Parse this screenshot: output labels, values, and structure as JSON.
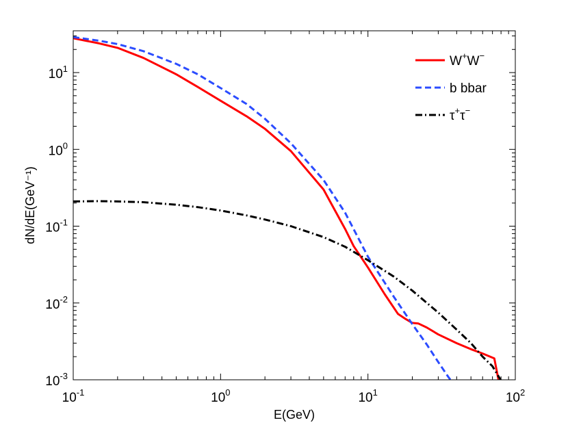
{
  "chart_data": {
    "type": "line",
    "title": "",
    "xlabel": "E(GeV)",
    "ylabel": "dN/dE(GeV⁻¹)",
    "xscale": "log",
    "yscale": "log",
    "xlim": [
      0.1,
      100
    ],
    "ylim": [
      0.001,
      35
    ],
    "x_ticks": [
      {
        "base": "10",
        "exp": "-1",
        "value": 0.1
      },
      {
        "base": "10",
        "exp": "0",
        "value": 1
      },
      {
        "base": "10",
        "exp": "1",
        "value": 10
      },
      {
        "base": "10",
        "exp": "2",
        "value": 100
      }
    ],
    "y_ticks": [
      {
        "base": "10",
        "exp": "-3",
        "value": 0.001
      },
      {
        "base": "10",
        "exp": "-2",
        "value": 0.01
      },
      {
        "base": "10",
        "exp": "-1",
        "value": 0.1
      },
      {
        "base": "10",
        "exp": "0",
        "value": 1
      },
      {
        "base": "10",
        "exp": "1",
        "value": 10
      }
    ],
    "legend_position": "top-right",
    "grid": false,
    "series": [
      {
        "name": "W+W-",
        "legend": {
          "parts": [
            [
              "W",
              "+"
            ],
            [
              "W",
              "−"
            ]
          ]
        },
        "color": "#ff0000",
        "style": "solid",
        "x": [
          0.1,
          0.15,
          0.2,
          0.3,
          0.5,
          0.7,
          1.0,
          1.5,
          2.0,
          3.0,
          5.0,
          7.0,
          8.0,
          10,
          13,
          16,
          18,
          20,
          22,
          25,
          30,
          40,
          50,
          60,
          72,
          77
        ],
        "y": [
          28,
          24,
          21,
          15.5,
          9.5,
          6.5,
          4.3,
          2.7,
          1.85,
          0.95,
          0.3,
          0.092,
          0.055,
          0.029,
          0.013,
          0.0072,
          0.0062,
          0.0055,
          0.0054,
          0.0048,
          0.0039,
          0.003,
          0.0025,
          0.0022,
          0.0019,
          0.00098
        ]
      },
      {
        "name": "b bbar",
        "legend": {
          "text": "b bbar"
        },
        "color": "#2b4cff",
        "style": "dashed",
        "x": [
          0.1,
          0.15,
          0.2,
          0.3,
          0.5,
          0.7,
          1.0,
          1.5,
          2.0,
          3.0,
          5.0,
          7.0,
          10,
          15,
          20,
          25,
          30,
          35,
          37
        ],
        "y": [
          29,
          26,
          23.5,
          19,
          13,
          9.5,
          6.3,
          3.9,
          2.5,
          1.2,
          0.4,
          0.15,
          0.04,
          0.012,
          0.0053,
          0.0029,
          0.0017,
          0.0011,
          0.00095
        ]
      },
      {
        "name": "tau+tau-",
        "legend": {
          "parts": [
            [
              "τ",
              "+"
            ],
            [
              "τ",
              "−"
            ]
          ]
        },
        "color": "#000000",
        "style": "dashdot",
        "x": [
          0.1,
          0.15,
          0.2,
          0.3,
          0.5,
          0.7,
          1.0,
          1.5,
          2.0,
          3.0,
          5.0,
          7.0,
          10,
          15,
          20,
          30,
          40,
          50,
          60,
          70,
          75,
          80
        ],
        "y": [
          0.21,
          0.212,
          0.21,
          0.205,
          0.19,
          0.177,
          0.16,
          0.138,
          0.122,
          0.1,
          0.072,
          0.054,
          0.036,
          0.022,
          0.0145,
          0.0075,
          0.0045,
          0.003,
          0.002,
          0.0015,
          0.0012,
          0.00098
        ]
      }
    ]
  }
}
